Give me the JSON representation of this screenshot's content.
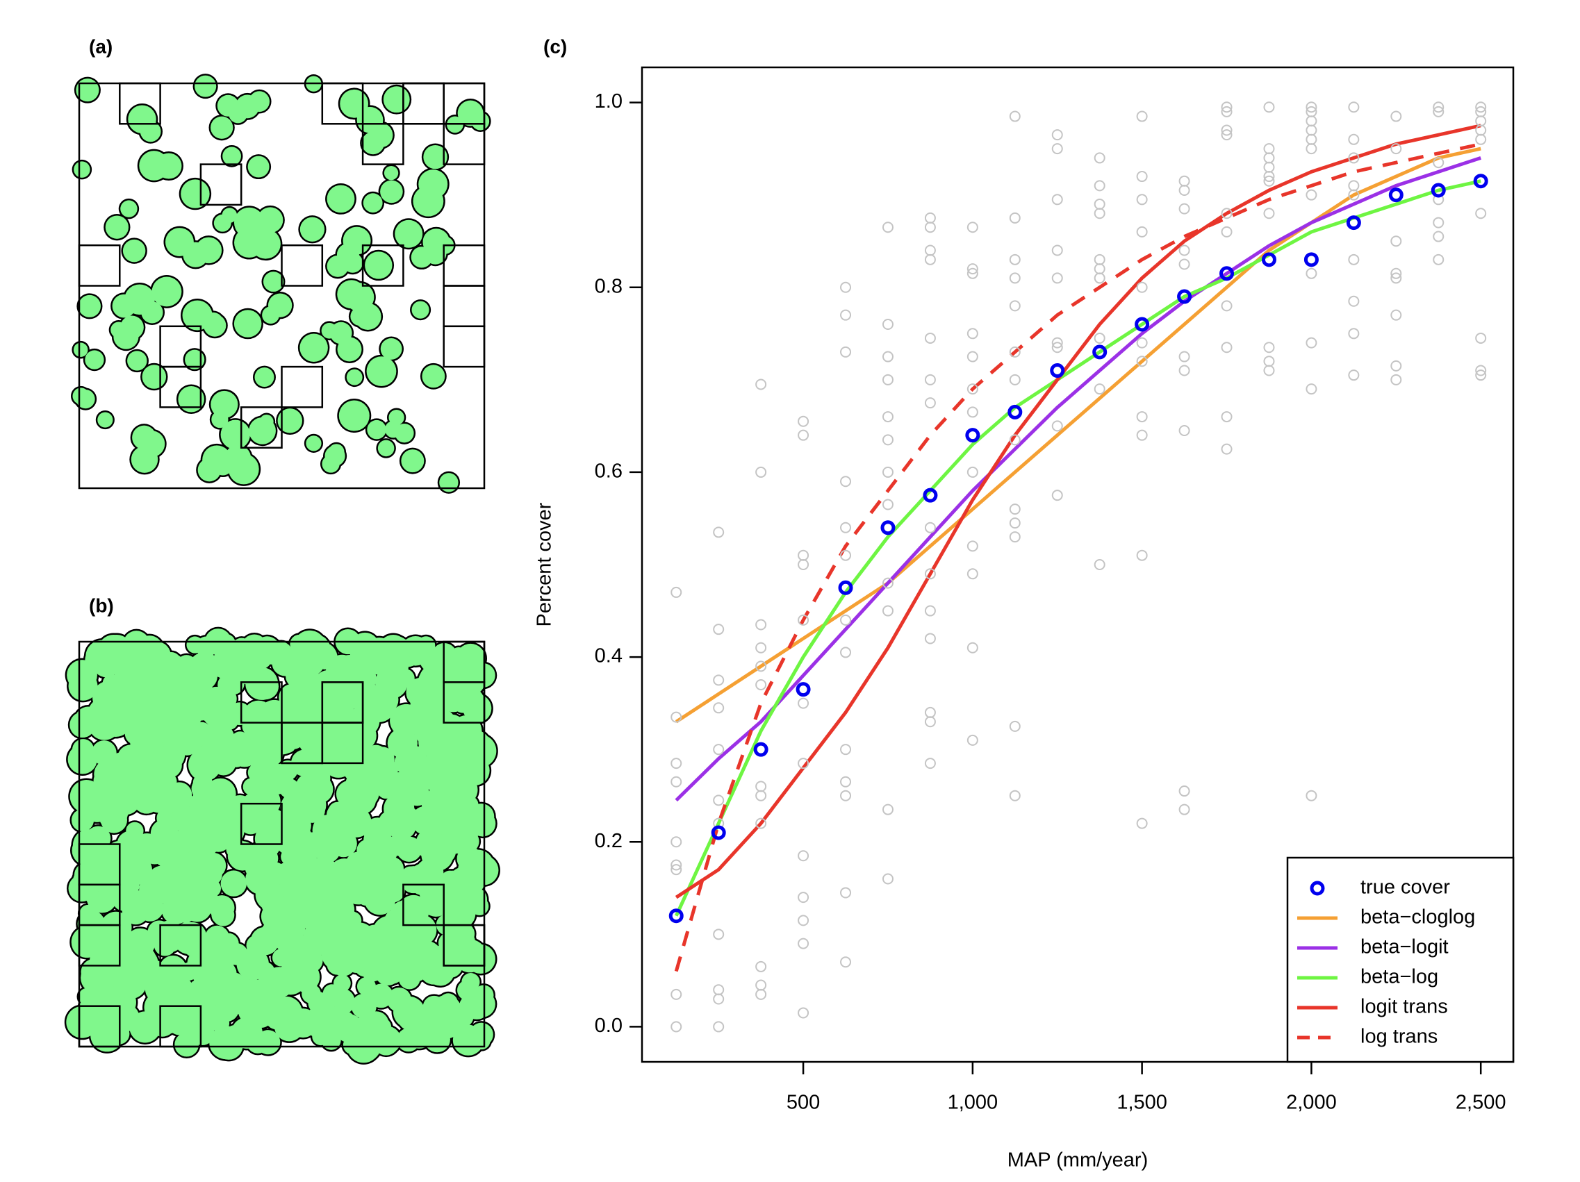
{
  "panel_labels": [
    "(a)",
    "(b)",
    "(c)"
  ],
  "chart_data": {
    "type": "scatter",
    "xlabel": "MAP (mm/year)",
    "ylabel": "Percent cover",
    "x": [
      125,
      250,
      375,
      500,
      625,
      750,
      875,
      1000,
      1125,
      1250,
      1375,
      1500,
      1625,
      1750,
      1875,
      2000,
      2125,
      2250,
      2375,
      2500
    ],
    "xlim": [
      24,
      2596
    ],
    "xticks": [
      500,
      {
        "value": 1000,
        "label": "1,000"
      },
      {
        "value": 1500,
        "label": "1,500"
      },
      {
        "value": 2000,
        "label": "2,000"
      },
      {
        "value": 2500,
        "label": "2,500"
      }
    ],
    "ylim": [
      -0.038,
      1.038
    ],
    "yticks": [
      {
        "value": 0,
        "label": "0.0"
      },
      0.2,
      0.4,
      0.6,
      0.8,
      {
        "value": 1,
        "label": "1.0"
      }
    ],
    "legend": "lower right",
    "series": [
      {
        "type": "points",
        "color": "#c4c4c4",
        "values": [
          [
            0.47,
            0.335,
            0.285,
            0.265,
            0.2,
            0.175,
            0.17,
            0.035,
            0.0
          ],
          [
            0.535,
            0.43,
            0.375,
            0.345,
            0.3,
            0.245,
            0.22,
            0.1,
            0.04,
            0.03,
            0.0
          ],
          [
            0.695,
            0.6,
            0.435,
            0.41,
            0.39,
            0.37,
            0.26,
            0.25,
            0.22,
            0.065,
            0.045,
            0.035
          ],
          [
            0.655,
            0.64,
            0.51,
            0.5,
            0.44,
            0.35,
            0.285,
            0.185,
            0.14,
            0.115,
            0.09,
            0.015
          ],
          [
            0.8,
            0.77,
            0.73,
            0.59,
            0.54,
            0.51,
            0.44,
            0.405,
            0.3,
            0.265,
            0.25,
            0.145,
            0.07
          ],
          [
            0.865,
            0.76,
            0.725,
            0.7,
            0.66,
            0.635,
            0.6,
            0.565,
            0.48,
            0.45,
            0.235,
            0.16
          ],
          [
            0.875,
            0.865,
            0.84,
            0.83,
            0.745,
            0.7,
            0.675,
            0.54,
            0.49,
            0.45,
            0.42,
            0.34,
            0.33,
            0.285
          ],
          [
            0.865,
            0.82,
            0.815,
            0.75,
            0.725,
            0.69,
            0.665,
            0.6,
            0.52,
            0.49,
            0.41,
            0.31
          ],
          [
            0.985,
            0.875,
            0.83,
            0.81,
            0.78,
            0.73,
            0.7,
            0.635,
            0.56,
            0.545,
            0.53,
            0.325,
            0.25
          ],
          [
            0.965,
            0.95,
            0.895,
            0.84,
            0.81,
            0.74,
            0.735,
            0.65,
            0.575
          ],
          [
            0.94,
            0.91,
            0.89,
            0.88,
            0.83,
            0.82,
            0.81,
            0.745,
            0.69,
            0.5
          ],
          [
            0.985,
            0.92,
            0.895,
            0.86,
            0.8,
            0.74,
            0.72,
            0.66,
            0.64,
            0.51,
            0.22
          ],
          [
            0.915,
            0.905,
            0.885,
            0.84,
            0.825,
            0.725,
            0.71,
            0.645,
            0.255,
            0.235
          ],
          [
            0.995,
            0.99,
            0.97,
            0.965,
            0.88,
            0.86,
            0.78,
            0.735,
            0.66,
            0.625
          ],
          [
            0.995,
            0.95,
            0.94,
            0.93,
            0.92,
            0.915,
            0.88,
            0.735,
            0.72,
            0.71
          ],
          [
            0.995,
            0.99,
            0.98,
            0.97,
            0.96,
            0.95,
            0.9,
            0.815,
            0.74,
            0.69,
            0.25
          ],
          [
            0.995,
            0.96,
            0.94,
            0.91,
            0.9,
            0.83,
            0.785,
            0.75,
            0.705
          ],
          [
            0.985,
            0.95,
            0.9,
            0.85,
            0.815,
            0.81,
            0.77,
            0.715,
            0.7
          ],
          [
            0.995,
            0.99,
            0.935,
            0.895,
            0.87,
            0.855,
            0.83
          ],
          [
            0.995,
            0.99,
            0.98,
            0.97,
            0.96,
            0.88,
            0.745,
            0.71,
            0.705
          ]
        ]
      },
      {
        "name": "true cover",
        "type": "points",
        "color": "#0000ee",
        "values": [
          0.12,
          0.21,
          0.3,
          0.365,
          0.475,
          0.54,
          0.575,
          0.64,
          0.665,
          0.71,
          0.73,
          0.76,
          0.79,
          0.815,
          0.83,
          0.83,
          0.87,
          0.9,
          0.905,
          0.915
        ]
      },
      {
        "name": "beta−cloglog",
        "type": "line",
        "color": "#f5a033",
        "values": [
          0.33,
          0.36,
          0.39,
          0.42,
          0.45,
          0.48,
          0.52,
          0.56,
          0.6,
          0.64,
          0.68,
          0.72,
          0.76,
          0.8,
          0.84,
          0.87,
          0.9,
          0.92,
          0.94,
          0.95
        ]
      },
      {
        "name": "beta−logit",
        "type": "line",
        "color": "#9b30e6",
        "values": [
          0.245,
          0.29,
          0.33,
          0.38,
          0.43,
          0.48,
          0.53,
          0.58,
          0.625,
          0.67,
          0.71,
          0.75,
          0.785,
          0.815,
          0.845,
          0.87,
          0.89,
          0.91,
          0.925,
          0.94
        ]
      },
      {
        "name": "beta−log",
        "type": "line",
        "color": "#6ef542",
        "values": [
          0.12,
          0.22,
          0.32,
          0.4,
          0.47,
          0.53,
          0.58,
          0.63,
          0.67,
          0.7,
          0.73,
          0.76,
          0.79,
          0.81,
          0.835,
          0.86,
          0.875,
          0.89,
          0.905,
          0.915
        ]
      },
      {
        "name": "logit trans",
        "type": "line",
        "color": "#e8352a",
        "values": [
          0.14,
          0.17,
          0.22,
          0.28,
          0.34,
          0.41,
          0.49,
          0.57,
          0.64,
          0.7,
          0.76,
          0.81,
          0.85,
          0.88,
          0.905,
          0.925,
          0.94,
          0.955,
          0.965,
          0.975
        ]
      },
      {
        "name": "log trans",
        "type": "line",
        "dash": true,
        "color": "#e8352a",
        "values": [
          0.06,
          0.22,
          0.35,
          0.44,
          0.52,
          0.58,
          0.64,
          0.69,
          0.73,
          0.77,
          0.8,
          0.83,
          0.855,
          0.875,
          0.895,
          0.91,
          0.925,
          0.935,
          0.945,
          0.955
        ]
      }
    ]
  }
}
